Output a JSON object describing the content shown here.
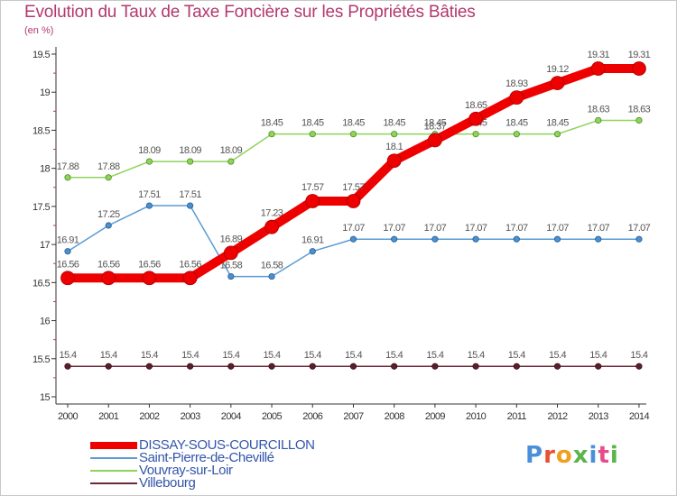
{
  "chart_data": {
    "type": "line",
    "title": "Evolution du Taux de Taxe Foncière sur les Propriétés Bâties",
    "subtitle": "(en %)",
    "xlabel": "",
    "ylabel": "",
    "ylim": [
      15,
      19.5
    ],
    "y_ticks": [
      "15",
      "15.5",
      "16",
      "16.5",
      "17",
      "17.5",
      "18",
      "18.5",
      "19",
      "19.5"
    ],
    "categories": [
      "2000",
      "2001",
      "2002",
      "2003",
      "2004",
      "2005",
      "2006",
      "2007",
      "2008",
      "2009",
      "2010",
      "2011",
      "2012",
      "2013",
      "2014"
    ],
    "series": [
      {
        "name": "Villebourg",
        "color": "#6b2a38",
        "values": [
          15.4,
          15.4,
          15.4,
          15.4,
          15.4,
          15.4,
          15.4,
          15.4,
          15.4,
          15.4,
          15.4,
          15.4,
          15.4,
          15.4,
          15.4
        ]
      },
      {
        "name": "Vouvray-sur-Loir",
        "color": "#8fd45a",
        "values": [
          17.88,
          17.88,
          18.09,
          18.09,
          18.09,
          18.45,
          18.45,
          18.45,
          18.45,
          18.45,
          18.45,
          18.45,
          18.45,
          18.63,
          18.63
        ]
      },
      {
        "name": "Saint-Pierre-de-Chevillé",
        "color": "#5b9bd5",
        "values": [
          16.91,
          17.25,
          17.51,
          17.51,
          16.58,
          16.58,
          16.91,
          17.07,
          17.07,
          17.07,
          17.07,
          17.07,
          17.07,
          17.07,
          17.07
        ]
      },
      {
        "name": "DISSAY-SOUS-COURCILLON",
        "color": "#ee0000",
        "values": [
          16.56,
          16.56,
          16.56,
          16.56,
          16.89,
          17.23,
          17.57,
          17.57,
          18.1,
          18.37,
          18.65,
          18.93,
          19.12,
          19.31,
          19.31
        ]
      }
    ],
    "value_labels": {
      "Villebourg": [
        "15.4",
        "15.4",
        "15.4",
        "15.4",
        "15.4",
        "15.4",
        "15.4",
        "15.4",
        "15.4",
        "15.4",
        "15.4",
        "15.4",
        "15.4",
        "15.4",
        "15.4"
      ],
      "Vouvray-sur-Loir": [
        "17.88",
        "17.88",
        "18.09",
        "18.09",
        "18.09",
        "18.45",
        "18.45",
        "18.45",
        "18.45",
        "18.45",
        "18.45",
        "18.45",
        "18.45",
        "18.63",
        "18.63"
      ],
      "Saint-Pierre-de-Chevillé": [
        "16.91",
        "17.25",
        "17.51",
        "17.51",
        "16.58",
        "16.58",
        "16.91",
        "17.07",
        "17.07",
        "17.07",
        "17.07",
        "17.07",
        "17.07",
        "17.07",
        "17.07"
      ],
      "DISSAY-SOUS-COURCILLON": [
        "16.56",
        "16.56",
        "16.56",
        "16.56",
        "16.89",
        "17.23",
        "17.57",
        "17.57",
        "18.1",
        "18.37",
        "18.65",
        "18.93",
        "19.12",
        "19.31",
        "19.31"
      ]
    },
    "legend": [
      "DISSAY-SOUS-COURCILLON",
      "Saint-Pierre-de-Chevillé",
      "Vouvray-sur-Loir",
      "Villebourg"
    ],
    "legend_position": "bottom-left",
    "grid": false
  },
  "logo": {
    "text": "Proxiti",
    "colors": [
      "#4a90d9",
      "#e8502f",
      "#f0a020",
      "#5ab54a",
      "#4a90d9",
      "#e84a8a",
      "#5ab54a"
    ]
  }
}
